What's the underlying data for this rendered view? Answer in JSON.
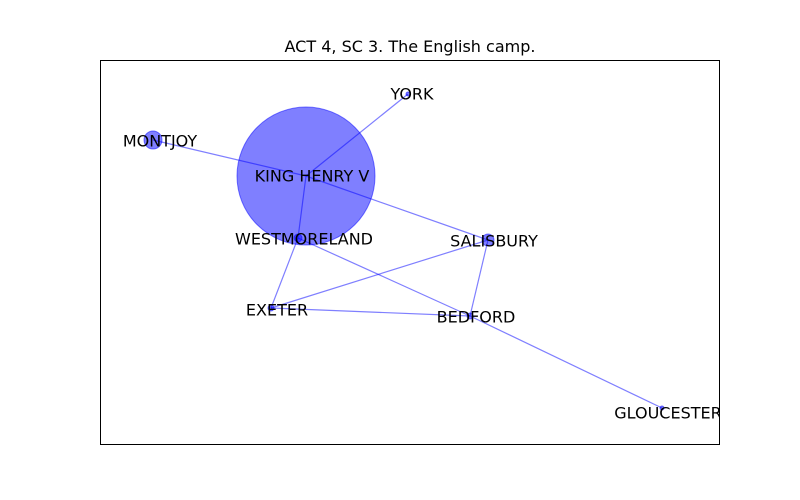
{
  "title": "ACT 4, SC 3. The English camp.",
  "colors": {
    "node": "#0000ff",
    "edge": "#0000ff",
    "frame": "#000000",
    "text": "#000000"
  },
  "nodes": [
    {
      "id": "king-henry-v",
      "label": "KING HENRY V"
    },
    {
      "id": "york",
      "label": "YORK"
    },
    {
      "id": "montjoy",
      "label": "MONTJOY"
    },
    {
      "id": "westmoreland",
      "label": "WESTMORELAND"
    },
    {
      "id": "salisbury",
      "label": "SALISBURY"
    },
    {
      "id": "exeter",
      "label": "EXETER"
    },
    {
      "id": "bedford",
      "label": "BEDFORD"
    },
    {
      "id": "gloucester",
      "label": "GLOUCESTER"
    }
  ],
  "edges": [
    [
      "king-henry-v",
      "york"
    ],
    [
      "king-henry-v",
      "montjoy"
    ],
    [
      "king-henry-v",
      "salisbury"
    ],
    [
      "king-henry-v",
      "westmoreland"
    ],
    [
      "westmoreland",
      "exeter"
    ],
    [
      "westmoreland",
      "bedford"
    ],
    [
      "salisbury",
      "exeter"
    ],
    [
      "salisbury",
      "bedford"
    ],
    [
      "exeter",
      "bedford"
    ],
    [
      "bedford",
      "gloucester"
    ]
  ]
}
